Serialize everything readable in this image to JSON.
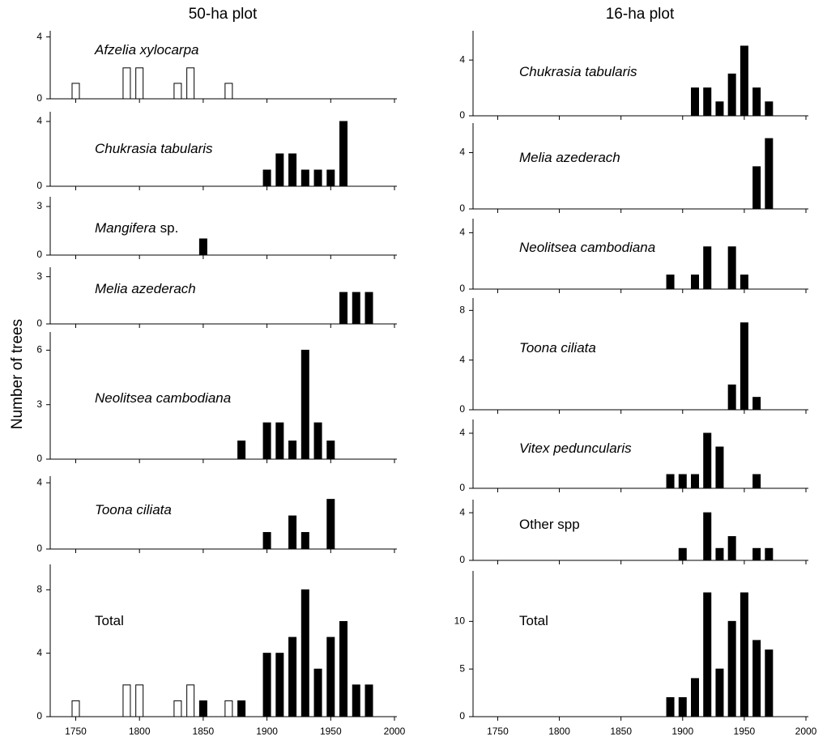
{
  "columns": [
    {
      "title": "50-ha plot"
    },
    {
      "title": "16-ha plot"
    }
  ],
  "ylabel": "Number of trees",
  "chart_data": [
    {
      "type": "bar",
      "label_parts": [
        {
          "text": "Afzelia xylocarpa",
          "italic": true
        }
      ],
      "xlim": [
        1730,
        2000
      ],
      "xticks": [
        1750,
        1800,
        1850,
        1900,
        1950,
        2000
      ],
      "show_xtick_labels": false,
      "ylim": [
        0,
        4.4
      ],
      "yticks": [
        0,
        4
      ],
      "series": [
        {
          "color": "#ffffff",
          "x": [
            1750,
            1790,
            1800,
            1830,
            1840,
            1870
          ],
          "values": [
            1,
            2,
            2,
            1,
            2,
            1
          ]
        }
      ]
    },
    {
      "type": "bar",
      "label_parts": [
        {
          "text": "Chukrasia tabularis",
          "italic": true
        }
      ],
      "xlim": [
        1730,
        2000
      ],
      "xticks": [
        1750,
        1800,
        1850,
        1900,
        1950,
        2000
      ],
      "show_xtick_labels": false,
      "ylim": [
        0,
        4.6
      ],
      "yticks": [
        0,
        4
      ],
      "series": [
        {
          "color": "#000000",
          "x": [
            1900,
            1910,
            1920,
            1930,
            1940,
            1950,
            1960
          ],
          "values": [
            1,
            2,
            2,
            1,
            1,
            1,
            4
          ]
        }
      ]
    },
    {
      "type": "bar",
      "label_parts": [
        {
          "text": "Mangifera",
          "italic": true
        },
        {
          "text": "sp.",
          "italic": false
        }
      ],
      "xlim": [
        1730,
        2000
      ],
      "xticks": [
        1750,
        1800,
        1850,
        1900,
        1950,
        2000
      ],
      "show_xtick_labels": false,
      "ylim": [
        0,
        3.6
      ],
      "yticks": [
        0,
        3
      ],
      "series": [
        {
          "color": "#000000",
          "x": [
            1850
          ],
          "values": [
            1
          ]
        }
      ]
    },
    {
      "type": "bar",
      "label_parts": [
        {
          "text": "Melia azederach",
          "italic": true
        }
      ],
      "xlim": [
        1730,
        2000
      ],
      "xticks": [
        1750,
        1800,
        1850,
        1900,
        1950,
        2000
      ],
      "show_xtick_labels": false,
      "ylim": [
        0,
        3.6
      ],
      "yticks": [
        0,
        3
      ],
      "series": [
        {
          "color": "#000000",
          "x": [
            1960,
            1970,
            1980
          ],
          "values": [
            2,
            2,
            2
          ]
        }
      ]
    },
    {
      "type": "bar",
      "label_parts": [
        {
          "text": "Neolitsea cambodiana",
          "italic": true
        }
      ],
      "xlim": [
        1730,
        2000
      ],
      "xticks": [
        1750,
        1800,
        1850,
        1900,
        1950,
        2000
      ],
      "show_xtick_labels": false,
      "ylim": [
        0,
        7
      ],
      "yticks": [
        0,
        3,
        6
      ],
      "series": [
        {
          "color": "#000000",
          "x": [
            1880,
            1900,
            1910,
            1920,
            1930,
            1940,
            1950
          ],
          "values": [
            1,
            2,
            2,
            1,
            6,
            2,
            1
          ]
        }
      ]
    },
    {
      "type": "bar",
      "label_parts": [
        {
          "text": "Toona ciliata",
          "italic": true
        }
      ],
      "xlim": [
        1730,
        2000
      ],
      "xticks": [
        1750,
        1800,
        1850,
        1900,
        1950,
        2000
      ],
      "show_xtick_labels": false,
      "ylim": [
        0,
        4.4
      ],
      "yticks": [
        0,
        4
      ],
      "series": [
        {
          "color": "#000000",
          "x": [
            1900,
            1920,
            1930,
            1950
          ],
          "values": [
            1,
            2,
            1,
            3
          ]
        }
      ]
    },
    {
      "type": "bar",
      "label_parts": [
        {
          "text": "Total",
          "italic": false
        }
      ],
      "xlim": [
        1730,
        2000
      ],
      "xticks": [
        1750,
        1800,
        1850,
        1900,
        1950,
        2000
      ],
      "show_xtick_labels": true,
      "ylim": [
        0,
        9.6
      ],
      "yticks": [
        0,
        4,
        8
      ],
      "series": [
        {
          "color": "#ffffff",
          "x": [
            1750,
            1790,
            1800,
            1830,
            1840,
            1870
          ],
          "values": [
            1,
            2,
            2,
            1,
            2,
            1
          ]
        },
        {
          "color": "#000000",
          "x": [
            1850,
            1880,
            1900,
            1910,
            1920,
            1930,
            1940,
            1950,
            1960,
            1970,
            1980
          ],
          "values": [
            1,
            1,
            4,
            4,
            5,
            8,
            3,
            5,
            6,
            2,
            2
          ]
        }
      ]
    },
    {
      "type": "bar",
      "label_parts": [
        {
          "text": "Chukrasia tabularis",
          "italic": true
        }
      ],
      "xlim": [
        1730,
        2000
      ],
      "xticks": [
        1750,
        1800,
        1850,
        1900,
        1950,
        2000
      ],
      "show_xtick_labels": false,
      "ylim": [
        0,
        6.1
      ],
      "yticks": [
        0,
        4
      ],
      "series": [
        {
          "color": "#000000",
          "x": [
            1910,
            1920,
            1930,
            1940,
            1950,
            1960,
            1970
          ],
          "values": [
            2,
            2,
            1,
            3,
            5,
            2,
            1
          ]
        }
      ]
    },
    {
      "type": "bar",
      "label_parts": [
        {
          "text": "Melia azederach",
          "italic": true
        }
      ],
      "xlim": [
        1730,
        2000
      ],
      "xticks": [
        1750,
        1800,
        1850,
        1900,
        1950,
        2000
      ],
      "show_xtick_labels": false,
      "ylim": [
        0,
        6.1
      ],
      "yticks": [
        0,
        4
      ],
      "series": [
        {
          "color": "#000000",
          "x": [
            1960,
            1970
          ],
          "values": [
            3,
            5
          ]
        }
      ]
    },
    {
      "type": "bar",
      "label_parts": [
        {
          "text": "Neolitsea cambodiana",
          "italic": true
        }
      ],
      "xlim": [
        1730,
        2000
      ],
      "xticks": [
        1750,
        1800,
        1850,
        1900,
        1950,
        2000
      ],
      "show_xtick_labels": false,
      "ylim": [
        0,
        5
      ],
      "yticks": [
        0,
        4
      ],
      "series": [
        {
          "color": "#000000",
          "x": [
            1890,
            1910,
            1920,
            1940,
            1950
          ],
          "values": [
            1,
            1,
            3,
            3,
            1
          ]
        }
      ]
    },
    {
      "type": "bar",
      "label_parts": [
        {
          "text": "Toona ciliata",
          "italic": true
        }
      ],
      "xlim": [
        1730,
        2000
      ],
      "xticks": [
        1750,
        1800,
        1850,
        1900,
        1950,
        2000
      ],
      "show_xtick_labels": false,
      "ylim": [
        0,
        9
      ],
      "yticks": [
        0,
        4,
        8
      ],
      "series": [
        {
          "color": "#000000",
          "x": [
            1940,
            1950,
            1960
          ],
          "values": [
            2,
            7,
            1
          ]
        }
      ]
    },
    {
      "type": "bar",
      "label_parts": [
        {
          "text": "Vitex peduncularis",
          "italic": true
        }
      ],
      "xlim": [
        1730,
        2000
      ],
      "xticks": [
        1750,
        1800,
        1850,
        1900,
        1950,
        2000
      ],
      "show_xtick_labels": false,
      "ylim": [
        0,
        5
      ],
      "yticks": [
        0,
        4
      ],
      "series": [
        {
          "color": "#000000",
          "x": [
            1890,
            1900,
            1910,
            1920,
            1930,
            1960
          ],
          "values": [
            1,
            1,
            1,
            4,
            3,
            1
          ]
        }
      ]
    },
    {
      "type": "bar",
      "label_parts": [
        {
          "text": "Other spp",
          "italic": false
        }
      ],
      "xlim": [
        1730,
        2000
      ],
      "xticks": [
        1750,
        1800,
        1850,
        1900,
        1950,
        2000
      ],
      "show_xtick_labels": false,
      "ylim": [
        0,
        5.1
      ],
      "yticks": [
        0,
        4
      ],
      "series": [
        {
          "color": "#000000",
          "x": [
            1900,
            1920,
            1930,
            1940,
            1960,
            1970
          ],
          "values": [
            1,
            4,
            1,
            2,
            1,
            1
          ]
        }
      ]
    },
    {
      "type": "bar",
      "label_parts": [
        {
          "text": "Total",
          "italic": false
        }
      ],
      "xlim": [
        1730,
        2000
      ],
      "xticks": [
        1750,
        1800,
        1850,
        1900,
        1950,
        2000
      ],
      "show_xtick_labels": true,
      "ylim": [
        0,
        15.3
      ],
      "yticks": [
        0,
        5,
        10
      ],
      "series": [
        {
          "color": "#000000",
          "x": [
            1890,
            1900,
            1910,
            1920,
            1930,
            1940,
            1950,
            1960,
            1970
          ],
          "values": [
            2,
            2,
            4,
            13,
            5,
            10,
            13,
            8,
            7
          ]
        }
      ]
    }
  ]
}
